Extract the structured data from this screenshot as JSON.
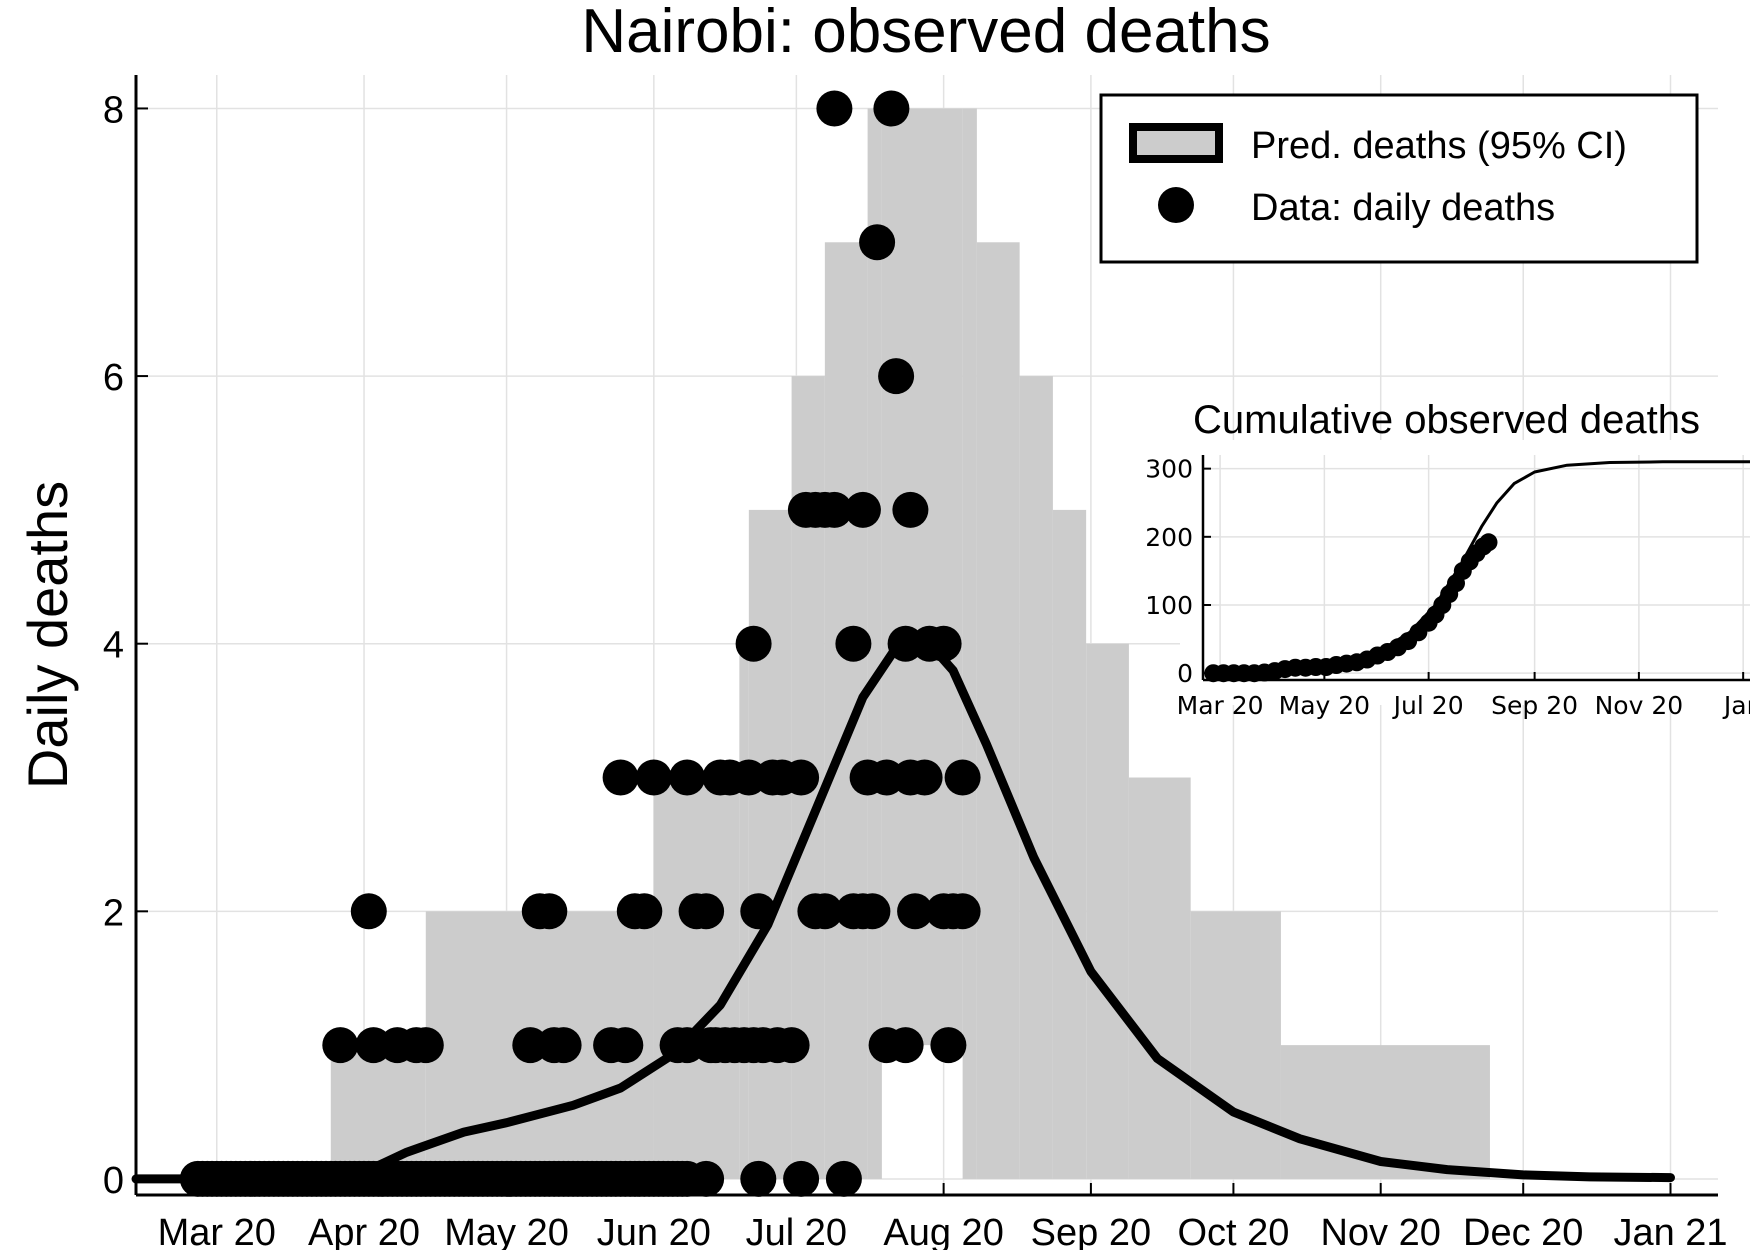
{
  "chart_data": [
    {
      "type": "scatter",
      "title": "Nairobi: observed deaths",
      "ylabel": "Daily deaths",
      "xlabel": "",
      "x_tick_labels": [
        "Mar 20",
        "Apr 20",
        "May 20",
        "Jun 20",
        "Jul 20",
        "Aug 20",
        "Sep 20",
        "Oct 20",
        "Nov 20",
        "Dec 20",
        "Jan 21"
      ],
      "x_tick_dates": [
        "2020-03-01",
        "2020-04-01",
        "2020-05-01",
        "2020-06-01",
        "2020-07-01",
        "2020-08-01",
        "2020-09-01",
        "2020-10-01",
        "2020-11-01",
        "2020-12-01",
        "2021-01-01"
      ],
      "xlim": [
        "2020-02-13",
        "2021-01-11"
      ],
      "y_ticks": [
        "0",
        "2",
        "4",
        "6",
        "8"
      ],
      "ylim": [
        -0.12,
        8.25
      ],
      "grid": true,
      "legend_position": "top-right",
      "legend": [
        "Pred. deaths (95% CI)",
        "Data: daily deaths"
      ],
      "colors": {
        "band": "#cccccc",
        "line": "#000000",
        "points": "#000000"
      },
      "ci_band": [
        {
          "start": "2020-03-25",
          "end": "2020-04-14",
          "lower": 0,
          "upper": 1
        },
        {
          "start": "2020-04-14",
          "end": "2020-06-01",
          "lower": 0,
          "upper": 2
        },
        {
          "start": "2020-06-01",
          "end": "2020-06-19",
          "lower": 0,
          "upper": 3
        },
        {
          "start": "2020-06-19",
          "end": "2020-06-21",
          "lower": 0,
          "upper": 4
        },
        {
          "start": "2020-06-21",
          "end": "2020-06-30",
          "lower": 0,
          "upper": 5
        },
        {
          "start": "2020-06-30",
          "end": "2020-07-07",
          "lower": 0,
          "upper": 6
        },
        {
          "start": "2020-07-07",
          "end": "2020-07-16",
          "lower": 0,
          "upper": 7
        },
        {
          "start": "2020-07-16",
          "end": "2020-07-19",
          "lower": 0,
          "upper": 8
        },
        {
          "start": "2020-07-19",
          "end": "2020-08-05",
          "lower": 1,
          "upper": 8
        },
        {
          "start": "2020-08-05",
          "end": "2020-08-08",
          "lower": 0,
          "upper": 8
        },
        {
          "start": "2020-08-08",
          "end": "2020-08-17",
          "lower": 0,
          "upper": 7
        },
        {
          "start": "2020-08-17",
          "end": "2020-08-24",
          "lower": 0,
          "upper": 6
        },
        {
          "start": "2020-08-24",
          "end": "2020-08-31",
          "lower": 0,
          "upper": 5
        },
        {
          "start": "2020-08-31",
          "end": "2020-09-09",
          "lower": 0,
          "upper": 4
        },
        {
          "start": "2020-09-09",
          "end": "2020-09-22",
          "lower": 0,
          "upper": 3
        },
        {
          "start": "2020-09-22",
          "end": "2020-10-11",
          "lower": 0,
          "upper": 2
        },
        {
          "start": "2020-10-11",
          "end": "2020-11-24",
          "lower": 0,
          "upper": 1
        }
      ],
      "pred_line": [
        [
          "2020-02-13",
          0
        ],
        [
          "2020-03-10",
          0
        ],
        [
          "2020-04-01",
          0.05
        ],
        [
          "2020-04-10",
          0.2
        ],
        [
          "2020-04-22",
          0.35
        ],
        [
          "2020-05-01",
          0.42
        ],
        [
          "2020-05-15",
          0.55
        ],
        [
          "2020-05-25",
          0.68
        ],
        [
          "2020-06-05",
          0.93
        ],
        [
          "2020-06-15",
          1.3
        ],
        [
          "2020-06-25",
          1.9
        ],
        [
          "2020-07-05",
          2.75
        ],
        [
          "2020-07-15",
          3.6
        ],
        [
          "2020-07-22",
          3.97
        ],
        [
          "2020-07-29",
          4.0
        ],
        [
          "2020-08-03",
          3.8
        ],
        [
          "2020-08-10",
          3.25
        ],
        [
          "2020-08-20",
          2.4
        ],
        [
          "2020-09-01",
          1.55
        ],
        [
          "2020-09-15",
          0.9
        ],
        [
          "2020-10-01",
          0.5
        ],
        [
          "2020-10-15",
          0.3
        ],
        [
          "2020-11-01",
          0.13
        ],
        [
          "2020-11-15",
          0.07
        ],
        [
          "2020-12-01",
          0.03
        ],
        [
          "2020-12-15",
          0.015
        ],
        [
          "2021-01-01",
          0.01
        ]
      ],
      "observed": [
        [
          "2020-02-26",
          0
        ],
        [
          "2020-02-27",
          0
        ],
        [
          "2020-02-28",
          0
        ],
        [
          "2020-02-29",
          0
        ],
        [
          "2020-03-01",
          0
        ],
        [
          "2020-03-02",
          0
        ],
        [
          "2020-03-03",
          0
        ],
        [
          "2020-03-04",
          0
        ],
        [
          "2020-03-05",
          0
        ],
        [
          "2020-03-06",
          0
        ],
        [
          "2020-03-07",
          0
        ],
        [
          "2020-03-08",
          0
        ],
        [
          "2020-03-09",
          0
        ],
        [
          "2020-03-10",
          0
        ],
        [
          "2020-03-11",
          0
        ],
        [
          "2020-03-12",
          0
        ],
        [
          "2020-03-13",
          0
        ],
        [
          "2020-03-14",
          0
        ],
        [
          "2020-03-15",
          0
        ],
        [
          "2020-03-16",
          0
        ],
        [
          "2020-03-17",
          0
        ],
        [
          "2020-03-18",
          0
        ],
        [
          "2020-03-19",
          0
        ],
        [
          "2020-03-20",
          0
        ],
        [
          "2020-03-21",
          0
        ],
        [
          "2020-03-22",
          0
        ],
        [
          "2020-03-23",
          0
        ],
        [
          "2020-03-24",
          0
        ],
        [
          "2020-03-25",
          0
        ],
        [
          "2020-03-26",
          0
        ],
        [
          "2020-03-27",
          0
        ],
        [
          "2020-03-28",
          0
        ],
        [
          "2020-03-29",
          0
        ],
        [
          "2020-03-30",
          0
        ],
        [
          "2020-03-31",
          0
        ],
        [
          "2020-04-01",
          0
        ],
        [
          "2020-04-02",
          0
        ],
        [
          "2020-04-03",
          0
        ],
        [
          "2020-04-04",
          0
        ],
        [
          "2020-04-05",
          0
        ],
        [
          "2020-04-06",
          0
        ],
        [
          "2020-04-07",
          0
        ],
        [
          "2020-04-08",
          0
        ],
        [
          "2020-04-09",
          0
        ],
        [
          "2020-04-10",
          0
        ],
        [
          "2020-04-11",
          0
        ],
        [
          "2020-04-12",
          0
        ],
        [
          "2020-04-13",
          0
        ],
        [
          "2020-04-14",
          0
        ],
        [
          "2020-04-15",
          0
        ],
        [
          "2020-04-16",
          0
        ],
        [
          "2020-04-17",
          0
        ],
        [
          "2020-04-18",
          0
        ],
        [
          "2020-04-19",
          0
        ],
        [
          "2020-04-20",
          0
        ],
        [
          "2020-04-21",
          0
        ],
        [
          "2020-04-22",
          0
        ],
        [
          "2020-04-23",
          0
        ],
        [
          "2020-04-24",
          0
        ],
        [
          "2020-04-25",
          0
        ],
        [
          "2020-04-26",
          0
        ],
        [
          "2020-04-27",
          0
        ],
        [
          "2020-04-28",
          0
        ],
        [
          "2020-04-29",
          0
        ],
        [
          "2020-04-30",
          0
        ],
        [
          "2020-05-01",
          0
        ],
        [
          "2020-05-02",
          0
        ],
        [
          "2020-05-03",
          0
        ],
        [
          "2020-05-04",
          0
        ],
        [
          "2020-05-05",
          0
        ],
        [
          "2020-05-06",
          0
        ],
        [
          "2020-05-07",
          0
        ],
        [
          "2020-05-08",
          0
        ],
        [
          "2020-05-09",
          0
        ],
        [
          "2020-05-10",
          0
        ],
        [
          "2020-05-11",
          0
        ],
        [
          "2020-05-12",
          0
        ],
        [
          "2020-05-13",
          0
        ],
        [
          "2020-05-14",
          0
        ],
        [
          "2020-05-15",
          0
        ],
        [
          "2020-05-16",
          0
        ],
        [
          "2020-05-17",
          0
        ],
        [
          "2020-05-18",
          0
        ],
        [
          "2020-05-19",
          0
        ],
        [
          "2020-05-20",
          0
        ],
        [
          "2020-05-21",
          0
        ],
        [
          "2020-05-22",
          0
        ],
        [
          "2020-05-23",
          0
        ],
        [
          "2020-05-24",
          0
        ],
        [
          "2020-05-25",
          0
        ],
        [
          "2020-05-26",
          0
        ],
        [
          "2020-05-27",
          0
        ],
        [
          "2020-05-28",
          0
        ],
        [
          "2020-05-29",
          0
        ],
        [
          "2020-05-30",
          0
        ],
        [
          "2020-05-31",
          0
        ],
        [
          "2020-06-01",
          0
        ],
        [
          "2020-06-02",
          0
        ],
        [
          "2020-06-03",
          0
        ],
        [
          "2020-06-04",
          0
        ],
        [
          "2020-06-05",
          0
        ],
        [
          "2020-06-06",
          0
        ],
        [
          "2020-06-07",
          0
        ],
        [
          "2020-06-08",
          0
        ],
        [
          "2020-06-12",
          0
        ],
        [
          "2020-06-23",
          0
        ],
        [
          "2020-07-02",
          0
        ],
        [
          "2020-07-11",
          0
        ],
        [
          "2020-03-27",
          1
        ],
        [
          "2020-04-03",
          1
        ],
        [
          "2020-04-08",
          1
        ],
        [
          "2020-04-12",
          1
        ],
        [
          "2020-04-14",
          1
        ],
        [
          "2020-05-06",
          1
        ],
        [
          "2020-05-11",
          1
        ],
        [
          "2020-05-13",
          1
        ],
        [
          "2020-05-23",
          1
        ],
        [
          "2020-05-26",
          1
        ],
        [
          "2020-06-06",
          1
        ],
        [
          "2020-06-08",
          1
        ],
        [
          "2020-06-13",
          1
        ],
        [
          "2020-06-14",
          1
        ],
        [
          "2020-06-16",
          1
        ],
        [
          "2020-06-18",
          1
        ],
        [
          "2020-06-20",
          1
        ],
        [
          "2020-06-22",
          1
        ],
        [
          "2020-06-24",
          1
        ],
        [
          "2020-06-27",
          1
        ],
        [
          "2020-06-30",
          1
        ],
        [
          "2020-07-20",
          1
        ],
        [
          "2020-07-24",
          1
        ],
        [
          "2020-08-02",
          1
        ],
        [
          "2020-04-02",
          2
        ],
        [
          "2020-05-08",
          2
        ],
        [
          "2020-05-10",
          2
        ],
        [
          "2020-05-28",
          2
        ],
        [
          "2020-05-30",
          2
        ],
        [
          "2020-06-10",
          2
        ],
        [
          "2020-06-12",
          2
        ],
        [
          "2020-06-23",
          2
        ],
        [
          "2020-07-05",
          2
        ],
        [
          "2020-07-07",
          2
        ],
        [
          "2020-07-13",
          2
        ],
        [
          "2020-07-15",
          2
        ],
        [
          "2020-07-17",
          2
        ],
        [
          "2020-07-26",
          2
        ],
        [
          "2020-08-01",
          2
        ],
        [
          "2020-08-03",
          2
        ],
        [
          "2020-08-05",
          2
        ],
        [
          "2020-05-25",
          3
        ],
        [
          "2020-06-01",
          3
        ],
        [
          "2020-06-08",
          3
        ],
        [
          "2020-06-15",
          3
        ],
        [
          "2020-06-17",
          3
        ],
        [
          "2020-06-21",
          3
        ],
        [
          "2020-06-26",
          3
        ],
        [
          "2020-06-28",
          3
        ],
        [
          "2020-07-02",
          3
        ],
        [
          "2020-07-16",
          3
        ],
        [
          "2020-07-20",
          3
        ],
        [
          "2020-07-25",
          3
        ],
        [
          "2020-07-28",
          3
        ],
        [
          "2020-08-05",
          3
        ],
        [
          "2020-06-22",
          4
        ],
        [
          "2020-07-13",
          4
        ],
        [
          "2020-07-24",
          4
        ],
        [
          "2020-07-29",
          4
        ],
        [
          "2020-08-01",
          4
        ],
        [
          "2020-07-03",
          5
        ],
        [
          "2020-07-05",
          5
        ],
        [
          "2020-07-07",
          5
        ],
        [
          "2020-07-09",
          5
        ],
        [
          "2020-07-15",
          5
        ],
        [
          "2020-07-25",
          5
        ],
        [
          "2020-07-22",
          6
        ],
        [
          "2020-07-18",
          7
        ],
        [
          "2020-07-09",
          8
        ],
        [
          "2020-07-21",
          8
        ]
      ]
    },
    {
      "type": "line",
      "title": "Cumulative observed deaths",
      "xlabel": "",
      "ylabel": "",
      "x_tick_labels": [
        "Mar 20",
        "May 20",
        "Jul 20",
        "Sep 20",
        "Nov 20",
        "Jan"
      ],
      "x_tick_dates": [
        "2020-03-01",
        "2020-05-01",
        "2020-07-01",
        "2020-09-01",
        "2020-11-01",
        "2021-01-01"
      ],
      "xlim": [
        "2020-02-20",
        "2021-01-05"
      ],
      "y_ticks": [
        "0",
        "100",
        "200",
        "300"
      ],
      "ylim": [
        -10,
        320
      ],
      "grid": true,
      "pred_cumulative": [
        [
          "2020-02-26",
          0
        ],
        [
          "2020-04-01",
          2
        ],
        [
          "2020-05-01",
          10
        ],
        [
          "2020-06-01",
          30
        ],
        [
          "2020-06-20",
          60
        ],
        [
          "2020-07-05",
          100
        ],
        [
          "2020-07-20",
          160
        ],
        [
          "2020-08-01",
          215
        ],
        [
          "2020-08-10",
          250
        ],
        [
          "2020-08-20",
          278
        ],
        [
          "2020-09-01",
          295
        ],
        [
          "2020-09-20",
          305
        ],
        [
          "2020-10-15",
          309
        ],
        [
          "2020-11-15",
          310
        ],
        [
          "2020-12-15",
          310
        ],
        [
          "2021-01-05",
          310
        ]
      ],
      "observed_cumulative": [
        [
          "2020-02-26",
          0
        ],
        [
          "2020-03-03",
          0
        ],
        [
          "2020-03-09",
          0
        ],
        [
          "2020-03-15",
          0
        ],
        [
          "2020-03-21",
          0
        ],
        [
          "2020-03-27",
          1
        ],
        [
          "2020-04-02",
          3
        ],
        [
          "2020-04-08",
          6
        ],
        [
          "2020-04-14",
          8
        ],
        [
          "2020-04-20",
          8
        ],
        [
          "2020-04-26",
          9
        ],
        [
          "2020-05-02",
          9
        ],
        [
          "2020-05-08",
          12
        ],
        [
          "2020-05-14",
          14
        ],
        [
          "2020-05-20",
          16
        ],
        [
          "2020-05-26",
          20
        ],
        [
          "2020-06-01",
          26
        ],
        [
          "2020-06-07",
          31
        ],
        [
          "2020-06-13",
          38
        ],
        [
          "2020-06-19",
          47
        ],
        [
          "2020-06-25",
          60
        ],
        [
          "2020-07-01",
          74
        ],
        [
          "2020-07-05",
          86
        ],
        [
          "2020-07-09",
          100
        ],
        [
          "2020-07-13",
          116
        ],
        [
          "2020-07-17",
          132
        ],
        [
          "2020-07-21",
          150
        ],
        [
          "2020-07-25",
          164
        ],
        [
          "2020-07-29",
          176
        ],
        [
          "2020-08-02",
          186
        ],
        [
          "2020-08-05",
          192
        ]
      ]
    }
  ]
}
